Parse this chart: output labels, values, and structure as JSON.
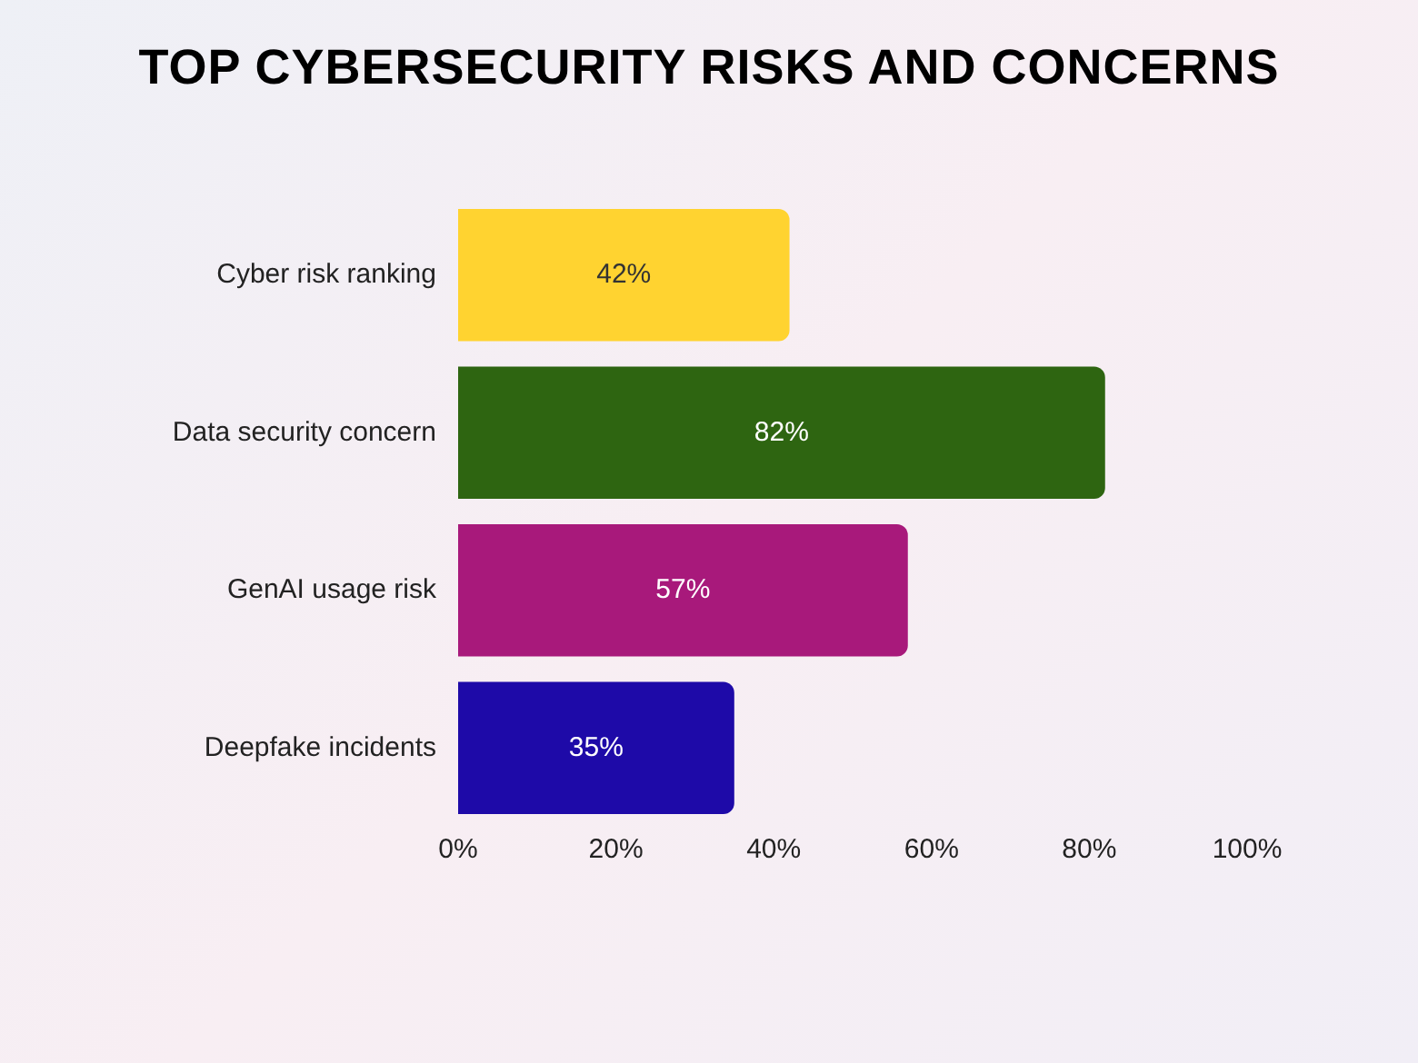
{
  "chart_data": {
    "type": "bar",
    "orientation": "horizontal",
    "title": "TOP CYBERSECURITY RISKS AND CONCERNS",
    "categories": [
      "Cyber risk ranking",
      "Data security concern",
      "GenAI usage risk",
      "Deepfake incidents"
    ],
    "values": [
      42,
      82,
      57,
      35
    ],
    "colors": [
      "#ffd330",
      "#2e6511",
      "#a8197b",
      "#1e0aa8"
    ],
    "value_labels": [
      "42%",
      "82%",
      "57%",
      "35%"
    ],
    "xlim": [
      0,
      100
    ],
    "xticks": [
      {
        "value": 0,
        "label": "0%"
      },
      {
        "value": 20,
        "label": "20%"
      },
      {
        "value": 40,
        "label": "40%"
      },
      {
        "value": 60,
        "label": "60%"
      },
      {
        "value": 80,
        "label": "80%"
      },
      {
        "value": 100,
        "label": "100%"
      }
    ],
    "grid": false
  }
}
